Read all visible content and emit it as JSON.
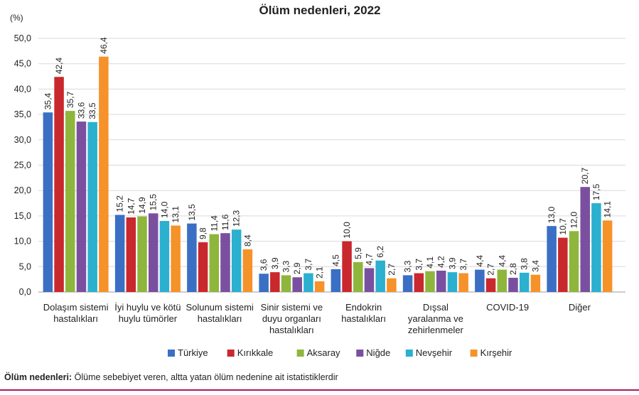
{
  "chart_data": {
    "type": "bar",
    "title": "Ölüm nedenleri, 2022",
    "ylabel": "(%)",
    "ylim": [
      0,
      50
    ],
    "yticks": [
      "0,0",
      "5,0",
      "10,0",
      "15,0",
      "20,0",
      "25,0",
      "30,0",
      "35,0",
      "40,0",
      "45,0",
      "50,0"
    ],
    "grid": true,
    "legend_position": "bottom",
    "categories": [
      [
        "Dolaşım sistemi",
        "hastalıkları"
      ],
      [
        "İyi huylu ve kötü",
        "huylu tümörler"
      ],
      [
        "Solunum sistemi",
        "hastalıkları"
      ],
      [
        "Sinir sistemi ve",
        "duyu organları",
        "hastalıkları"
      ],
      [
        "Endokrin",
        "hastalıkları"
      ],
      [
        "Dışsal",
        "yaralanma ve",
        "zehirlenmeler"
      ],
      [
        "COVID-19"
      ],
      [
        "Diğer"
      ]
    ],
    "series": [
      {
        "name": "Türkiye",
        "color": "#3a6fc4",
        "values": [
          35.4,
          15.2,
          13.5,
          3.6,
          4.5,
          3.3,
          4.4,
          13.0
        ],
        "labels": [
          "35,4",
          "15,2",
          "13,5",
          "3,6",
          "4,5",
          "3,3",
          "4,4",
          "13,0"
        ]
      },
      {
        "name": "Kırıkkale",
        "color": "#c9282d",
        "values": [
          42.4,
          14.7,
          9.8,
          3.9,
          10.0,
          3.7,
          2.7,
          10.7
        ],
        "labels": [
          "42,4",
          "14,7",
          "9,8",
          "3,9",
          "10,0",
          "3,7",
          "2,7",
          "10,7"
        ]
      },
      {
        "name": "Aksaray",
        "color": "#8fb63c",
        "values": [
          35.7,
          14.9,
          11.4,
          3.3,
          5.9,
          4.1,
          4.4,
          12.0
        ],
        "labels": [
          "35,7",
          "14,9",
          "11,4",
          "3,3",
          "5,9",
          "4,1",
          "4,4",
          "12,0"
        ]
      },
      {
        "name": "Niğde",
        "color": "#7a4fa0",
        "values": [
          33.6,
          15.5,
          11.6,
          2.9,
          4.7,
          4.2,
          2.8,
          20.7
        ],
        "labels": [
          "33,6",
          "15,5",
          "11,6",
          "2,9",
          "4,7",
          "4,2",
          "2,8",
          "20,7"
        ]
      },
      {
        "name": "Nevşehir",
        "color": "#2bb0cf",
        "values": [
          33.5,
          14.0,
          12.3,
          3.7,
          6.2,
          3.9,
          3.8,
          17.5
        ],
        "labels": [
          "33,5",
          "14,0",
          "12,3",
          "3,7",
          "6,2",
          "3,9",
          "3,8",
          "17,5"
        ]
      },
      {
        "name": "Kırşehir",
        "color": "#f5922a",
        "values": [
          46.4,
          13.1,
          8.4,
          2.1,
          2.7,
          3.7,
          3.4,
          14.1
        ],
        "labels": [
          "46,4",
          "13,1",
          "8,4",
          "2,1",
          "2,7",
          "3,7",
          "3,4",
          "14,1"
        ]
      }
    ]
  },
  "footnote": {
    "term": "Ölüm nedenleri:",
    "text": " Ölüme sebebiyet veren, altta yatan ölüm nedenine ait istatistiklerdir"
  }
}
